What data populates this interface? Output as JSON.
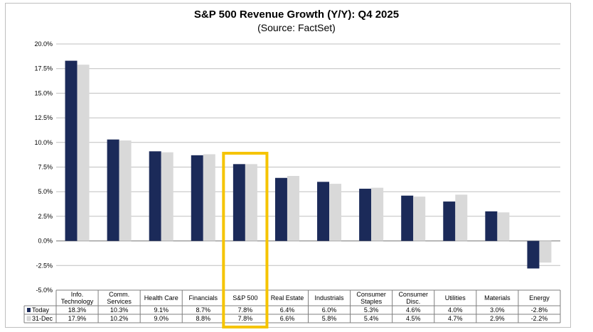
{
  "chart_data": {
    "type": "bar",
    "title": "S&P 500 Revenue Growth (Y/Y): Q4 2025",
    "subtitle": "(Source: FactSet)",
    "categories": [
      [
        "Info.",
        "Technology"
      ],
      [
        "Comm.",
        "Services"
      ],
      [
        "Health Care"
      ],
      [
        "Financials"
      ],
      [
        "S&P 500"
      ],
      [
        "Real Estate"
      ],
      [
        "Industrials"
      ],
      [
        "Consumer",
        "Staples"
      ],
      [
        "Consumer",
        "Disc."
      ],
      [
        "Utilities"
      ],
      [
        "Materials"
      ],
      [
        "Energy"
      ]
    ],
    "series": [
      {
        "name": "Today",
        "color": "#1b2a59",
        "values": [
          18.3,
          10.3,
          9.1,
          8.7,
          7.8,
          6.4,
          6.0,
          5.3,
          4.6,
          4.0,
          3.0,
          -2.8
        ],
        "labels": [
          "18.3%",
          "10.3%",
          "9.1%",
          "8.7%",
          "7.8%",
          "6.4%",
          "6.0%",
          "5.3%",
          "4.6%",
          "4.0%",
          "3.0%",
          "-2.8%"
        ]
      },
      {
        "name": "31-Dec",
        "color": "#d9d9d9",
        "values": [
          17.9,
          10.2,
          9.0,
          8.8,
          7.8,
          6.6,
          5.8,
          5.4,
          4.5,
          4.7,
          2.9,
          -2.2
        ],
        "labels": [
          "17.9%",
          "10.2%",
          "9.0%",
          "8.8%",
          "7.8%",
          "6.6%",
          "5.8%",
          "5.4%",
          "4.5%",
          "4.7%",
          "2.9%",
          "-2.2%"
        ]
      }
    ],
    "ylim": [
      -5.0,
      20.0
    ],
    "yticks": [
      "-5.0%",
      "-2.5%",
      "0.0%",
      "2.5%",
      "5.0%",
      "7.5%",
      "10.0%",
      "12.5%",
      "15.0%",
      "17.5%",
      "20.0%"
    ],
    "grid": true,
    "legend": "table-below",
    "highlight": {
      "category_index": 4,
      "color": "#f5c400"
    }
  }
}
